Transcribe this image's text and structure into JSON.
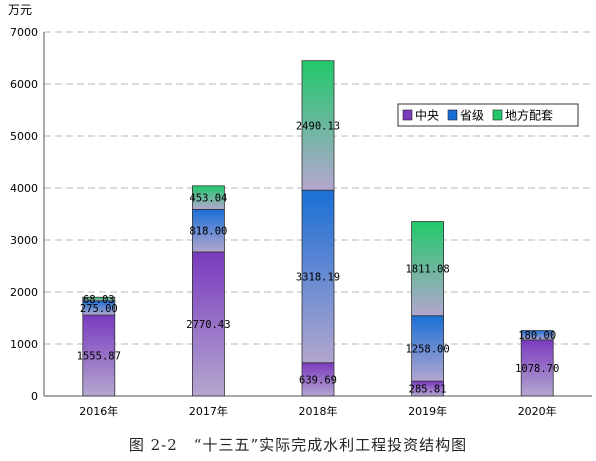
{
  "caption": "图 2-2　“十三五”实际完成水利工程投资结构图",
  "chart_data": {
    "type": "bar",
    "stacked": true,
    "unit": "万元",
    "categories": [
      "2016年",
      "2017年",
      "2018年",
      "2019年",
      "2020年"
    ],
    "series": [
      {
        "name": "中央",
        "values": [
          1555.87,
          2770.43,
          639.69,
          285.81,
          1078.7
        ],
        "labels": [
          "1555.87",
          "2770.43",
          "639.69",
          "285.81",
          "1078.70"
        ],
        "color": "#7a3bbf"
      },
      {
        "name": "省级",
        "values": [
          275.0,
          818.0,
          3318.19,
          1258.0,
          180.0
        ],
        "labels": [
          "275.00",
          "818.00",
          "3318.19",
          "1258.00",
          "180.00"
        ],
        "color": "#1a6fd6"
      },
      {
        "name": "地方配套",
        "values": [
          68.03,
          453.04,
          2490.13,
          1811.08,
          0
        ],
        "labels": [
          "68.03",
          "453.04",
          "2490.13",
          "1811.08",
          ""
        ],
        "color": "#22c96a"
      }
    ],
    "ylim": [
      0,
      7000
    ],
    "yticks": [
      "0",
      "1000",
      "2000",
      "3000",
      "4000",
      "5000",
      "6000",
      "7000"
    ],
    "grid": true,
    "legend": "right, upper middle"
  }
}
